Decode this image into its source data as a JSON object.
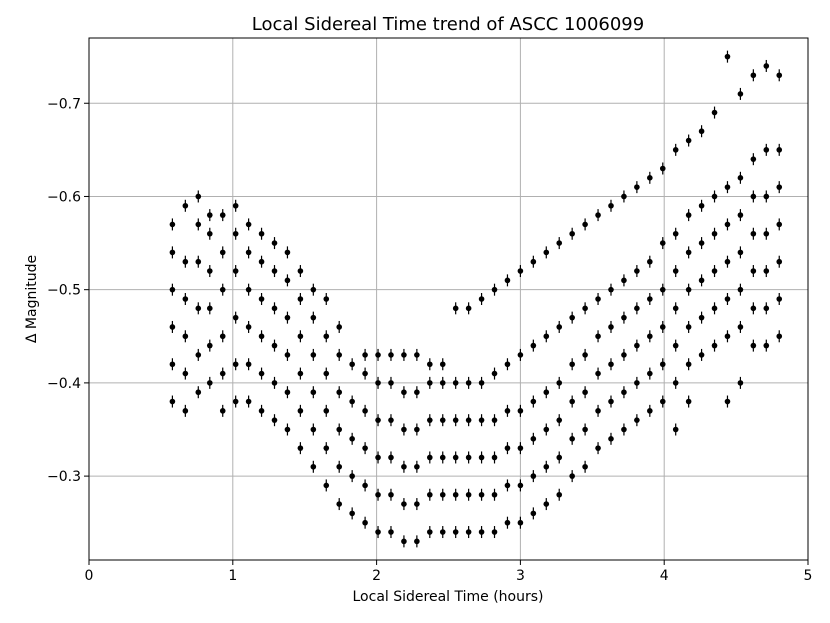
{
  "chart_data": {
    "type": "scatter",
    "title": "Local Sidereal Time trend of ASCC 1006099",
    "xlabel": "Local Sidereal Time (hours)",
    "ylabel": "Δ Magnitude",
    "xlim": [
      0,
      5
    ],
    "ylim": [
      -0.21,
      -0.77
    ],
    "y_inverted": true,
    "grid": true,
    "x_ticks": [
      0,
      1,
      2,
      3,
      4,
      5
    ],
    "x_tick_labels": [
      "0",
      "1",
      "2",
      "3",
      "4",
      "5"
    ],
    "y_ticks": [
      -0.3,
      -0.4,
      -0.5,
      -0.6,
      -0.7
    ],
    "y_tick_labels": [
      "−0.3",
      "−0.4",
      "−0.5",
      "−0.6",
      "−0.7"
    ],
    "marker_color": "#000000",
    "series": [
      {
        "points": [
          [
            0.58,
            -0.38
          ],
          [
            0.58,
            -0.42
          ],
          [
            0.58,
            -0.46
          ],
          [
            0.58,
            -0.5
          ],
          [
            0.58,
            -0.54
          ],
          [
            0.58,
            -0.57
          ],
          [
            0.67,
            -0.37
          ],
          [
            0.67,
            -0.41
          ],
          [
            0.67,
            -0.45
          ],
          [
            0.67,
            -0.49
          ],
          [
            0.67,
            -0.53
          ],
          [
            0.67,
            -0.59
          ],
          [
            0.76,
            -0.39
          ],
          [
            0.76,
            -0.43
          ],
          [
            0.76,
            -0.48
          ],
          [
            0.76,
            -0.53
          ],
          [
            0.76,
            -0.57
          ],
          [
            0.76,
            -0.6
          ],
          [
            0.84,
            -0.4
          ],
          [
            0.84,
            -0.44
          ],
          [
            0.84,
            -0.48
          ],
          [
            0.84,
            -0.52
          ],
          [
            0.84,
            -0.56
          ],
          [
            0.84,
            -0.58
          ],
          [
            0.93,
            -0.37
          ],
          [
            0.93,
            -0.41
          ],
          [
            0.93,
            -0.45
          ],
          [
            0.93,
            -0.5
          ],
          [
            0.93,
            -0.54
          ],
          [
            0.93,
            -0.58
          ],
          [
            1.02,
            -0.38
          ],
          [
            1.02,
            -0.42
          ],
          [
            1.02,
            -0.47
          ],
          [
            1.02,
            -0.52
          ],
          [
            1.02,
            -0.56
          ],
          [
            1.02,
            -0.59
          ],
          [
            1.11,
            -0.38
          ],
          [
            1.11,
            -0.42
          ],
          [
            1.11,
            -0.46
          ],
          [
            1.11,
            -0.5
          ],
          [
            1.11,
            -0.54
          ],
          [
            1.11,
            -0.57
          ],
          [
            1.2,
            -0.37
          ],
          [
            1.2,
            -0.41
          ],
          [
            1.2,
            -0.45
          ],
          [
            1.2,
            -0.49
          ],
          [
            1.2,
            -0.53
          ],
          [
            1.2,
            -0.56
          ],
          [
            1.29,
            -0.36
          ],
          [
            1.29,
            -0.4
          ],
          [
            1.29,
            -0.44
          ],
          [
            1.29,
            -0.48
          ],
          [
            1.29,
            -0.52
          ],
          [
            1.29,
            -0.55
          ],
          [
            1.38,
            -0.35
          ],
          [
            1.38,
            -0.39
          ],
          [
            1.38,
            -0.43
          ],
          [
            1.38,
            -0.47
          ],
          [
            1.38,
            -0.51
          ],
          [
            1.38,
            -0.54
          ],
          [
            1.47,
            -0.33
          ],
          [
            1.47,
            -0.37
          ],
          [
            1.47,
            -0.41
          ],
          [
            1.47,
            -0.45
          ],
          [
            1.47,
            -0.49
          ],
          [
            1.47,
            -0.52
          ],
          [
            1.56,
            -0.31
          ],
          [
            1.56,
            -0.35
          ],
          [
            1.56,
            -0.39
          ],
          [
            1.56,
            -0.43
          ],
          [
            1.56,
            -0.47
          ],
          [
            1.56,
            -0.5
          ],
          [
            1.65,
            -0.29
          ],
          [
            1.65,
            -0.33
          ],
          [
            1.65,
            -0.37
          ],
          [
            1.65,
            -0.41
          ],
          [
            1.65,
            -0.45
          ],
          [
            1.65,
            -0.49
          ],
          [
            1.74,
            -0.27
          ],
          [
            1.74,
            -0.31
          ],
          [
            1.74,
            -0.35
          ],
          [
            1.74,
            -0.39
          ],
          [
            1.74,
            -0.43
          ],
          [
            1.74,
            -0.46
          ],
          [
            1.83,
            -0.26
          ],
          [
            1.83,
            -0.3
          ],
          [
            1.83,
            -0.34
          ],
          [
            1.83,
            -0.38
          ],
          [
            1.83,
            -0.42
          ],
          [
            1.92,
            -0.25
          ],
          [
            1.92,
            -0.29
          ],
          [
            1.92,
            -0.33
          ],
          [
            1.92,
            -0.37
          ],
          [
            1.92,
            -0.41
          ],
          [
            1.92,
            -0.43
          ],
          [
            2.01,
            -0.24
          ],
          [
            2.01,
            -0.28
          ],
          [
            2.01,
            -0.32
          ],
          [
            2.01,
            -0.36
          ],
          [
            2.01,
            -0.4
          ],
          [
            2.01,
            -0.43
          ],
          [
            2.1,
            -0.24
          ],
          [
            2.1,
            -0.28
          ],
          [
            2.1,
            -0.32
          ],
          [
            2.1,
            -0.36
          ],
          [
            2.1,
            -0.4
          ],
          [
            2.1,
            -0.43
          ],
          [
            2.19,
            -0.23
          ],
          [
            2.19,
            -0.27
          ],
          [
            2.19,
            -0.31
          ],
          [
            2.19,
            -0.35
          ],
          [
            2.19,
            -0.39
          ],
          [
            2.19,
            -0.43
          ],
          [
            2.28,
            -0.23
          ],
          [
            2.28,
            -0.27
          ],
          [
            2.28,
            -0.31
          ],
          [
            2.28,
            -0.35
          ],
          [
            2.28,
            -0.39
          ],
          [
            2.28,
            -0.43
          ],
          [
            2.37,
            -0.24
          ],
          [
            2.37,
            -0.28
          ],
          [
            2.37,
            -0.32
          ],
          [
            2.37,
            -0.36
          ],
          [
            2.37,
            -0.4
          ],
          [
            2.37,
            -0.42
          ],
          [
            2.46,
            -0.24
          ],
          [
            2.46,
            -0.28
          ],
          [
            2.46,
            -0.32
          ],
          [
            2.46,
            -0.36
          ],
          [
            2.46,
            -0.4
          ],
          [
            2.46,
            -0.42
          ],
          [
            2.55,
            -0.24
          ],
          [
            2.55,
            -0.28
          ],
          [
            2.55,
            -0.32
          ],
          [
            2.55,
            -0.36
          ],
          [
            2.55,
            -0.4
          ],
          [
            2.55,
            -0.48
          ],
          [
            2.64,
            -0.24
          ],
          [
            2.64,
            -0.28
          ],
          [
            2.64,
            -0.32
          ],
          [
            2.64,
            -0.36
          ],
          [
            2.64,
            -0.4
          ],
          [
            2.64,
            -0.48
          ],
          [
            2.73,
            -0.24
          ],
          [
            2.73,
            -0.28
          ],
          [
            2.73,
            -0.32
          ],
          [
            2.73,
            -0.36
          ],
          [
            2.73,
            -0.4
          ],
          [
            2.73,
            -0.49
          ],
          [
            2.82,
            -0.24
          ],
          [
            2.82,
            -0.28
          ],
          [
            2.82,
            -0.32
          ],
          [
            2.82,
            -0.36
          ],
          [
            2.82,
            -0.41
          ],
          [
            2.82,
            -0.5
          ],
          [
            2.91,
            -0.25
          ],
          [
            2.91,
            -0.29
          ],
          [
            2.91,
            -0.33
          ],
          [
            2.91,
            -0.37
          ],
          [
            2.91,
            -0.42
          ],
          [
            2.91,
            -0.51
          ],
          [
            3.0,
            -0.25
          ],
          [
            3.0,
            -0.29
          ],
          [
            3.0,
            -0.33
          ],
          [
            3.0,
            -0.37
          ],
          [
            3.0,
            -0.43
          ],
          [
            3.0,
            -0.52
          ],
          [
            3.09,
            -0.26
          ],
          [
            3.09,
            -0.3
          ],
          [
            3.09,
            -0.34
          ],
          [
            3.09,
            -0.38
          ],
          [
            3.09,
            -0.44
          ],
          [
            3.09,
            -0.53
          ],
          [
            3.18,
            -0.27
          ],
          [
            3.18,
            -0.31
          ],
          [
            3.18,
            -0.35
          ],
          [
            3.18,
            -0.39
          ],
          [
            3.18,
            -0.45
          ],
          [
            3.18,
            -0.54
          ],
          [
            3.27,
            -0.28
          ],
          [
            3.27,
            -0.32
          ],
          [
            3.27,
            -0.36
          ],
          [
            3.27,
            -0.4
          ],
          [
            3.27,
            -0.46
          ],
          [
            3.27,
            -0.55
          ],
          [
            3.36,
            -0.3
          ],
          [
            3.36,
            -0.34
          ],
          [
            3.36,
            -0.38
          ],
          [
            3.36,
            -0.42
          ],
          [
            3.36,
            -0.47
          ],
          [
            3.36,
            -0.56
          ],
          [
            3.45,
            -0.31
          ],
          [
            3.45,
            -0.35
          ],
          [
            3.45,
            -0.39
          ],
          [
            3.45,
            -0.43
          ],
          [
            3.45,
            -0.48
          ],
          [
            3.45,
            -0.57
          ],
          [
            3.54,
            -0.33
          ],
          [
            3.54,
            -0.37
          ],
          [
            3.54,
            -0.41
          ],
          [
            3.54,
            -0.45
          ],
          [
            3.54,
            -0.49
          ],
          [
            3.54,
            -0.58
          ],
          [
            3.63,
            -0.34
          ],
          [
            3.63,
            -0.38
          ],
          [
            3.63,
            -0.42
          ],
          [
            3.63,
            -0.46
          ],
          [
            3.63,
            -0.5
          ],
          [
            3.63,
            -0.59
          ],
          [
            3.72,
            -0.35
          ],
          [
            3.72,
            -0.39
          ],
          [
            3.72,
            -0.43
          ],
          [
            3.72,
            -0.47
          ],
          [
            3.72,
            -0.51
          ],
          [
            3.72,
            -0.6
          ],
          [
            3.81,
            -0.36
          ],
          [
            3.81,
            -0.4
          ],
          [
            3.81,
            -0.44
          ],
          [
            3.81,
            -0.48
          ],
          [
            3.81,
            -0.52
          ],
          [
            3.81,
            -0.61
          ],
          [
            3.9,
            -0.37
          ],
          [
            3.9,
            -0.41
          ],
          [
            3.9,
            -0.45
          ],
          [
            3.9,
            -0.49
          ],
          [
            3.9,
            -0.53
          ],
          [
            3.9,
            -0.62
          ],
          [
            3.99,
            -0.38
          ],
          [
            3.99,
            -0.42
          ],
          [
            3.99,
            -0.46
          ],
          [
            3.99,
            -0.5
          ],
          [
            3.99,
            -0.55
          ],
          [
            3.99,
            -0.63
          ],
          [
            4.08,
            -0.35
          ],
          [
            4.08,
            -0.4
          ],
          [
            4.08,
            -0.44
          ],
          [
            4.08,
            -0.48
          ],
          [
            4.08,
            -0.52
          ],
          [
            4.08,
            -0.56
          ],
          [
            4.08,
            -0.65
          ],
          [
            4.17,
            -0.38
          ],
          [
            4.17,
            -0.42
          ],
          [
            4.17,
            -0.46
          ],
          [
            4.17,
            -0.5
          ],
          [
            4.17,
            -0.54
          ],
          [
            4.17,
            -0.58
          ],
          [
            4.17,
            -0.66
          ],
          [
            4.26,
            -0.43
          ],
          [
            4.26,
            -0.47
          ],
          [
            4.26,
            -0.51
          ],
          [
            4.26,
            -0.55
          ],
          [
            4.26,
            -0.59
          ],
          [
            4.26,
            -0.67
          ],
          [
            4.35,
            -0.44
          ],
          [
            4.35,
            -0.48
          ],
          [
            4.35,
            -0.52
          ],
          [
            4.35,
            -0.56
          ],
          [
            4.35,
            -0.6
          ],
          [
            4.35,
            -0.69
          ],
          [
            4.44,
            -0.38
          ],
          [
            4.44,
            -0.45
          ],
          [
            4.44,
            -0.49
          ],
          [
            4.44,
            -0.53
          ],
          [
            4.44,
            -0.57
          ],
          [
            4.44,
            -0.61
          ],
          [
            4.44,
            -0.75
          ],
          [
            4.53,
            -0.4
          ],
          [
            4.53,
            -0.46
          ],
          [
            4.53,
            -0.5
          ],
          [
            4.53,
            -0.54
          ],
          [
            4.53,
            -0.58
          ],
          [
            4.53,
            -0.62
          ],
          [
            4.53,
            -0.71
          ],
          [
            4.62,
            -0.44
          ],
          [
            4.62,
            -0.48
          ],
          [
            4.62,
            -0.52
          ],
          [
            4.62,
            -0.56
          ],
          [
            4.62,
            -0.6
          ],
          [
            4.62,
            -0.64
          ],
          [
            4.62,
            -0.73
          ],
          [
            4.71,
            -0.44
          ],
          [
            4.71,
            -0.48
          ],
          [
            4.71,
            -0.52
          ],
          [
            4.71,
            -0.56
          ],
          [
            4.71,
            -0.6
          ],
          [
            4.71,
            -0.65
          ],
          [
            4.71,
            -0.74
          ],
          [
            4.8,
            -0.45
          ],
          [
            4.8,
            -0.49
          ],
          [
            4.8,
            -0.53
          ],
          [
            4.8,
            -0.57
          ],
          [
            4.8,
            -0.61
          ],
          [
            4.8,
            -0.65
          ],
          [
            4.8,
            -0.73
          ]
        ]
      }
    ]
  }
}
